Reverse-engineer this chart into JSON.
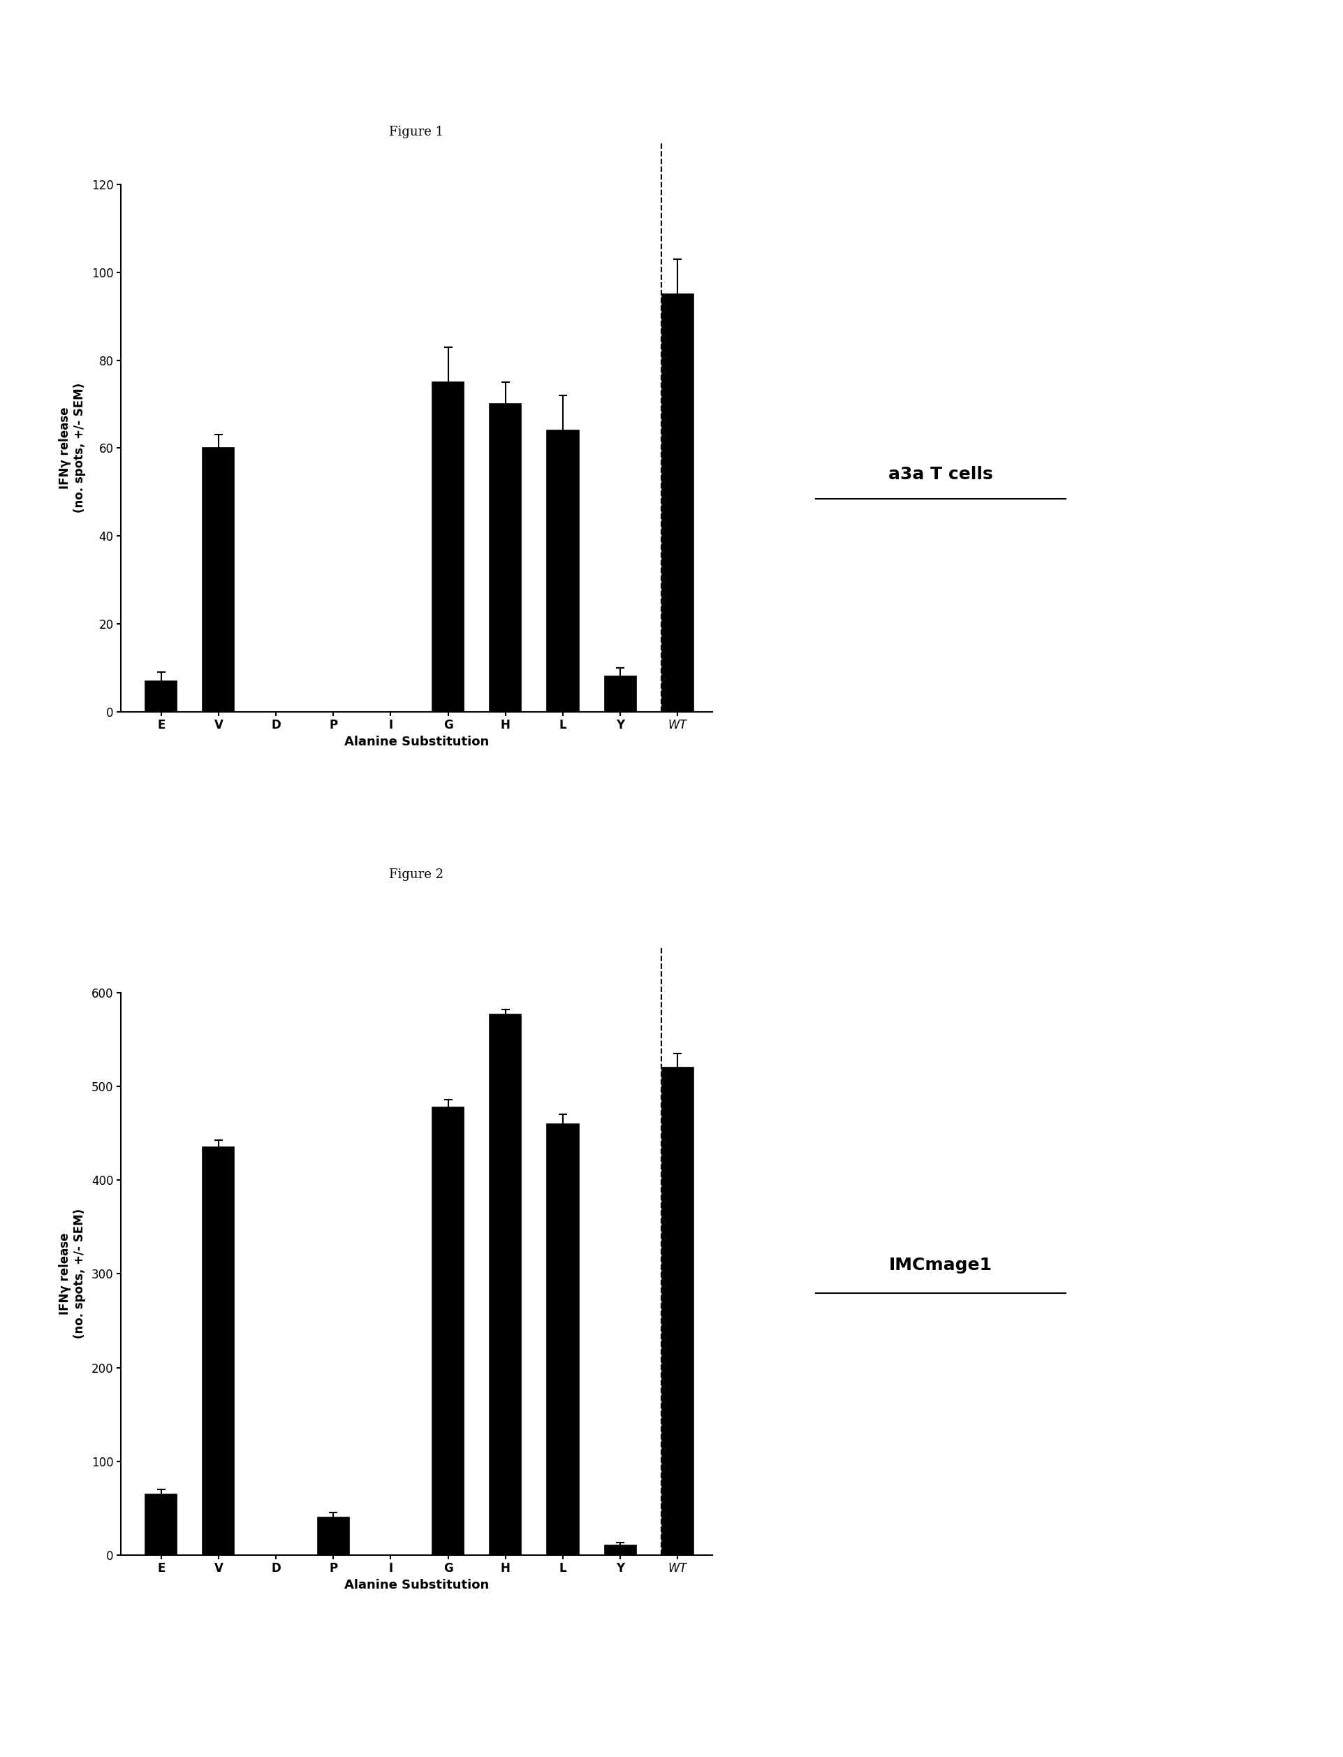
{
  "fig1": {
    "title": "Figure 1",
    "categories": [
      "E",
      "V",
      "D",
      "P",
      "I",
      "G",
      "H",
      "L",
      "Y",
      "WT"
    ],
    "values": [
      7,
      60,
      0,
      0,
      0,
      75,
      70,
      64,
      8,
      95
    ],
    "errors": [
      2,
      3,
      0,
      0,
      0,
      8,
      5,
      8,
      2,
      8
    ],
    "ylim": [
      0,
      120
    ],
    "yticks": [
      0,
      20,
      40,
      60,
      80,
      100,
      120
    ],
    "ylabel": "IFNγ release\n(no. spots, +/- SEM)",
    "xlabel": "Alanine Substitution",
    "side_label": "a3a T cells"
  },
  "fig2": {
    "title": "Figure 2",
    "categories": [
      "E",
      "V",
      "D",
      "P",
      "I",
      "G",
      "H",
      "L",
      "Y",
      "WT"
    ],
    "values": [
      65,
      435,
      0,
      40,
      0,
      478,
      577,
      460,
      10,
      520
    ],
    "errors": [
      5,
      8,
      0,
      5,
      0,
      8,
      5,
      10,
      3,
      15
    ],
    "ylim": [
      0,
      600
    ],
    "yticks": [
      0,
      100,
      200,
      300,
      400,
      500,
      600
    ],
    "ylabel": "IFNγ release\n(no. spots, +/- SEM)",
    "xlabel": "Alanine Substitution",
    "side_label": "IMCmage1"
  },
  "bar_color": "#000000",
  "bar_width": 0.55,
  "background_color": "#ffffff",
  "font_color": "#000000",
  "title_fontsize": 13,
  "label_fontsize": 13,
  "tick_fontsize": 12,
  "ylabel_fontsize": 12,
  "side_label_fontsize": 18
}
